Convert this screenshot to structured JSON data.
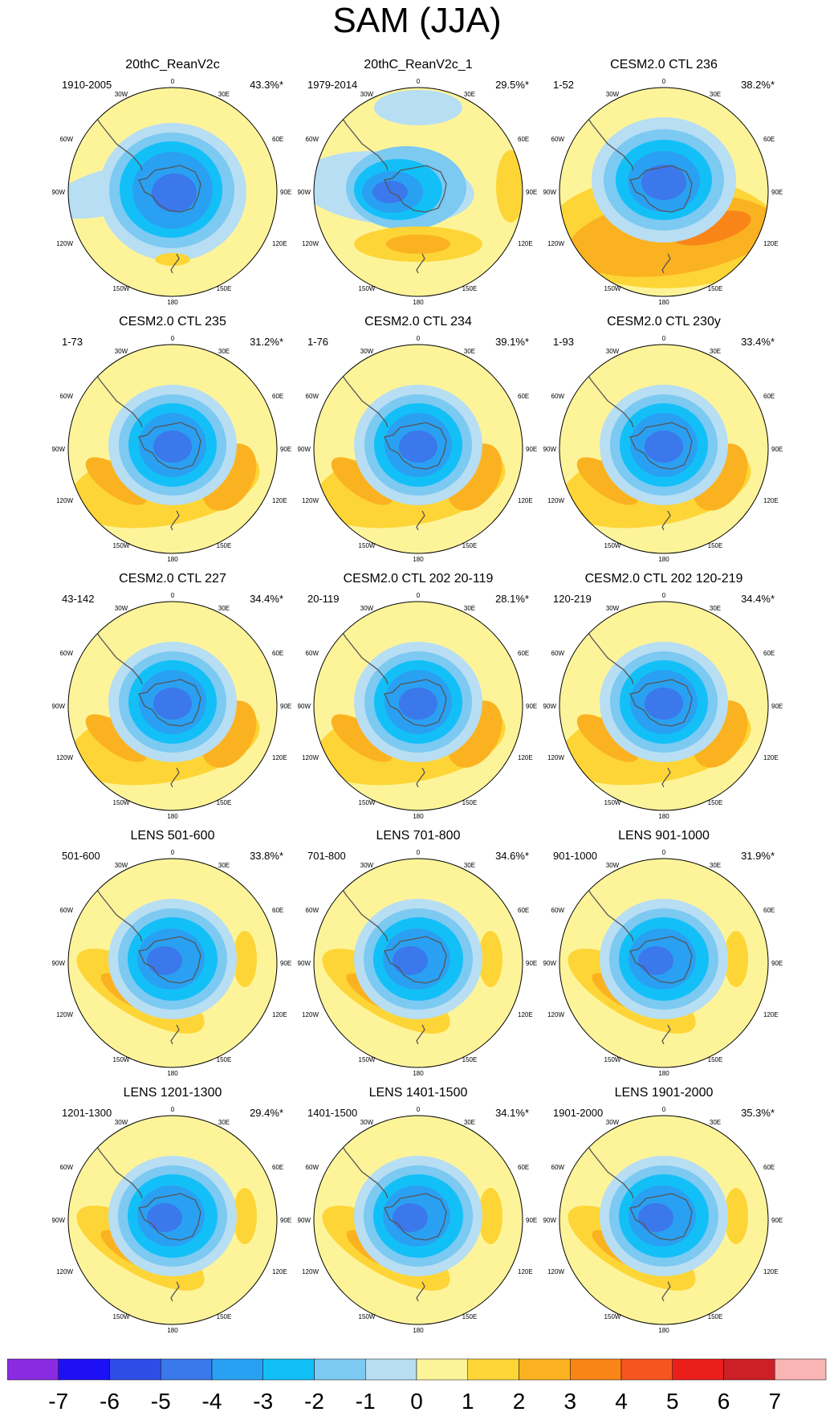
{
  "title": "SAM (JJA)",
  "colors": {
    "neg7": "#8a2be2",
    "neg6": "#1e10f5",
    "neg5": "#2f4de6",
    "neg4": "#3a78ec",
    "neg3": "#2aa0f2",
    "neg2": "#12c0f7",
    "neg1": "#7cc9f2",
    "neg0": "#b7def3",
    "pos0": "#fdf49a",
    "pos1": "#fdd536",
    "pos2": "#fbb221",
    "pos3": "#f98519",
    "pos4": "#f7551f",
    "pos5": "#eb1e1c",
    "pos6": "#cc2026",
    "pos7": "#f8b5b4",
    "coast": "#555555"
  },
  "map_labels": {
    "lon_0": "0",
    "lon_30w": "30W",
    "lon_30e": "30E",
    "lon_60w": "60W",
    "lon_60e": "60E",
    "lon_90w": "90W",
    "lon_90e": "90E",
    "lon_120w": "120W",
    "lon_120e": "120E",
    "lon_150w": "150W",
    "lon_150e": "150E",
    "lon_180": "180"
  },
  "panels": [
    {
      "title": "20thC_ReanV2c",
      "period": "1910-2005",
      "variance": "43.3%*",
      "pattern": "rean"
    },
    {
      "title": "20thC_ReanV2c_1",
      "period": "1979-2014",
      "variance": "29.5%*",
      "pattern": "rean1"
    },
    {
      "title": "CESM2.0 CTL 236",
      "period": "1-52",
      "variance": "38.2%*",
      "pattern": "ctl236"
    },
    {
      "title": "CESM2.0 CTL 235",
      "period": "1-73",
      "variance": "31.2%*",
      "pattern": "ctl"
    },
    {
      "title": "CESM2.0 CTL 234",
      "period": "1-76",
      "variance": "39.1%*",
      "pattern": "ctl"
    },
    {
      "title": "CESM2.0 CTL 230y",
      "period": "1-93",
      "variance": "33.4%*",
      "pattern": "ctl"
    },
    {
      "title": "CESM2.0 CTL 227",
      "period": "43-142",
      "variance": "34.4%*",
      "pattern": "ctl"
    },
    {
      "title": "CESM2.0 CTL 202 20-119",
      "period": "20-119",
      "variance": "28.1%*",
      "pattern": "ctl"
    },
    {
      "title": "CESM2.0 CTL 202 120-219",
      "period": "120-219",
      "variance": "34.4%*",
      "pattern": "ctl"
    },
    {
      "title": "LENS 501-600",
      "period": "501-600",
      "variance": "33.8%*",
      "pattern": "lens"
    },
    {
      "title": "LENS 701-800",
      "period": "701-800",
      "variance": "34.6%*",
      "pattern": "lens"
    },
    {
      "title": "LENS 901-1000",
      "period": "901-1000",
      "variance": "31.9%*",
      "pattern": "lens"
    },
    {
      "title": "LENS 1201-1300",
      "period": "1201-1300",
      "variance": "29.4%*",
      "pattern": "lens"
    },
    {
      "title": "LENS 1401-1500",
      "period": "1401-1500",
      "variance": "34.1%*",
      "pattern": "lens"
    },
    {
      "title": "LENS 1901-2000",
      "period": "1901-2000",
      "variance": "35.3%*",
      "pattern": "lens"
    }
  ],
  "colorbar": {
    "labels": [
      "-7",
      "-6",
      "-5",
      "-4",
      "-3",
      "-2",
      "-1",
      "0",
      "1",
      "2",
      "3",
      "4",
      "5",
      "6",
      "7"
    ],
    "swatches": [
      "neg7",
      "neg6",
      "neg5",
      "neg4",
      "neg3",
      "neg2",
      "neg1",
      "neg0",
      "pos0",
      "pos1",
      "pos2",
      "pos3",
      "pos4",
      "pos5",
      "pos6",
      "pos7"
    ]
  }
}
